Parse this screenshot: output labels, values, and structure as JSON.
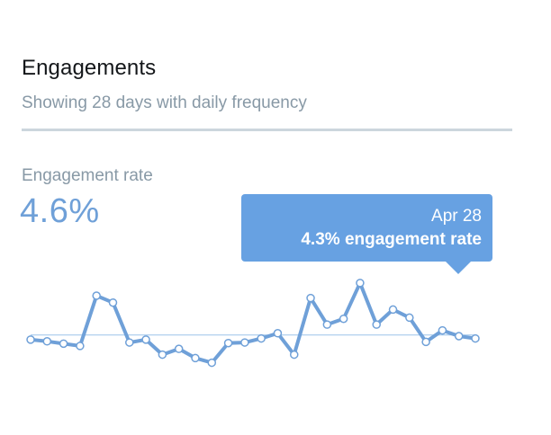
{
  "card": {
    "title": "Engagements",
    "subtitle": "Showing 28 days with daily frequency"
  },
  "metric": {
    "label": "Engagement rate",
    "value": "4.6%"
  },
  "tooltip": {
    "date": "Apr 28",
    "rate_text": "4.3% engagement rate"
  },
  "colors": {
    "line": "#6fa0d8",
    "baseline": "#9cc3ea",
    "tooltip_bg": "#67a1e2"
  },
  "chart_data": {
    "type": "line",
    "title": "",
    "xlabel": "",
    "ylabel": "",
    "grid": false,
    "average": 4.6,
    "ylim": [
      1.0,
      8.0
    ],
    "series": [
      {
        "values": [
          4.2,
          4.05,
          3.85,
          3.65,
          8.0,
          7.4,
          3.95,
          4.2,
          2.9,
          3.4,
          2.6,
          2.2,
          3.9,
          3.95,
          4.3,
          4.75,
          2.9,
          7.8,
          5.5,
          6.0,
          9.1,
          5.5,
          6.8,
          6.1,
          4.0,
          5.0,
          4.5,
          4.3
        ]
      }
    ]
  }
}
